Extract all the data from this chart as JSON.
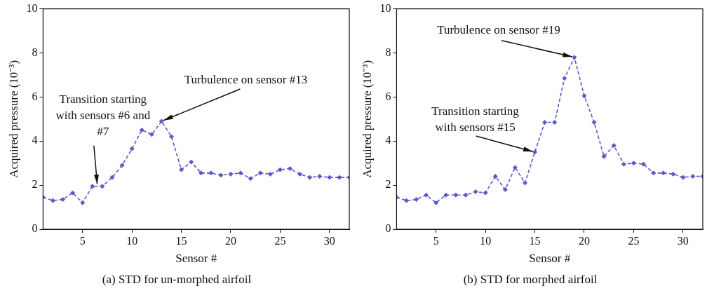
{
  "chart_data": [
    {
      "type": "line",
      "title": "(a) STD for un-morphed airfoil",
      "xlabel": "Sensor #",
      "ylabel": "Acquired pressure (10⁻³)",
      "x": [
        1,
        2,
        3,
        4,
        5,
        6,
        7,
        8,
        9,
        10,
        11,
        12,
        13,
        14,
        15,
        16,
        17,
        18,
        19,
        20,
        21,
        22,
        23,
        24,
        25,
        26,
        27,
        28,
        29,
        30,
        31,
        32
      ],
      "series": [
        {
          "color": "#5a5ac8",
          "values": [
            1.45,
            1.3,
            1.35,
            1.65,
            1.2,
            1.95,
            1.95,
            2.35,
            2.9,
            3.65,
            4.5,
            4.3,
            4.9,
            4.2,
            2.7,
            3.05,
            2.55,
            2.55,
            2.45,
            2.5,
            2.55,
            2.3,
            2.55,
            2.5,
            2.7,
            2.75,
            2.5,
            2.35,
            2.4,
            2.35,
            2.35,
            2.35
          ]
        }
      ],
      "xlim": [
        1,
        32
      ],
      "xticks": [
        5,
        10,
        15,
        20,
        25,
        30
      ],
      "ylim": [
        0,
        10
      ],
      "yticks": [
        0,
        2,
        4,
        6,
        8,
        10
      ],
      "marker": "diamond",
      "line_style": "dashed",
      "grid": false,
      "legend": false,
      "annotations": [
        {
          "text": "Transition starting with sensors #6 and #7",
          "x": 6.5,
          "y": 1.95
        },
        {
          "text": "Turbulence on sensor #13",
          "x": 13,
          "y": 4.9
        }
      ]
    },
    {
      "type": "line",
      "title": "(b) STD for morphed airfoil",
      "xlabel": "Sensor #",
      "ylabel": "Acquired pressure (10⁻³)",
      "x": [
        1,
        2,
        3,
        4,
        5,
        6,
        7,
        8,
        9,
        10,
        11,
        12,
        13,
        14,
        15,
        16,
        17,
        18,
        19,
        20,
        21,
        22,
        23,
        24,
        25,
        26,
        27,
        28,
        29,
        30,
        31,
        32
      ],
      "series": [
        {
          "color": "#5a5ac8",
          "values": [
            1.45,
            1.3,
            1.35,
            1.55,
            1.2,
            1.55,
            1.55,
            1.55,
            1.7,
            1.65,
            2.4,
            1.8,
            2.8,
            2.1,
            3.5,
            4.85,
            4.85,
            6.85,
            7.8,
            6.05,
            4.85,
            3.3,
            3.8,
            2.95,
            3.0,
            2.95,
            2.55,
            2.55,
            2.5,
            2.35,
            2.4,
            2.4
          ]
        }
      ],
      "xlim": [
        1,
        32
      ],
      "xticks": [
        5,
        10,
        15,
        20,
        25,
        30
      ],
      "ylim": [
        0,
        10
      ],
      "yticks": [
        0,
        2,
        4,
        6,
        8,
        10
      ],
      "marker": "diamond",
      "line_style": "dashed",
      "grid": false,
      "legend": false,
      "annotations": [
        {
          "text": "Turbulence on sensor #19",
          "x": 19,
          "y": 7.8
        },
        {
          "text": "Transition starting with sensors #15",
          "x": 15,
          "y": 3.5
        }
      ]
    }
  ]
}
